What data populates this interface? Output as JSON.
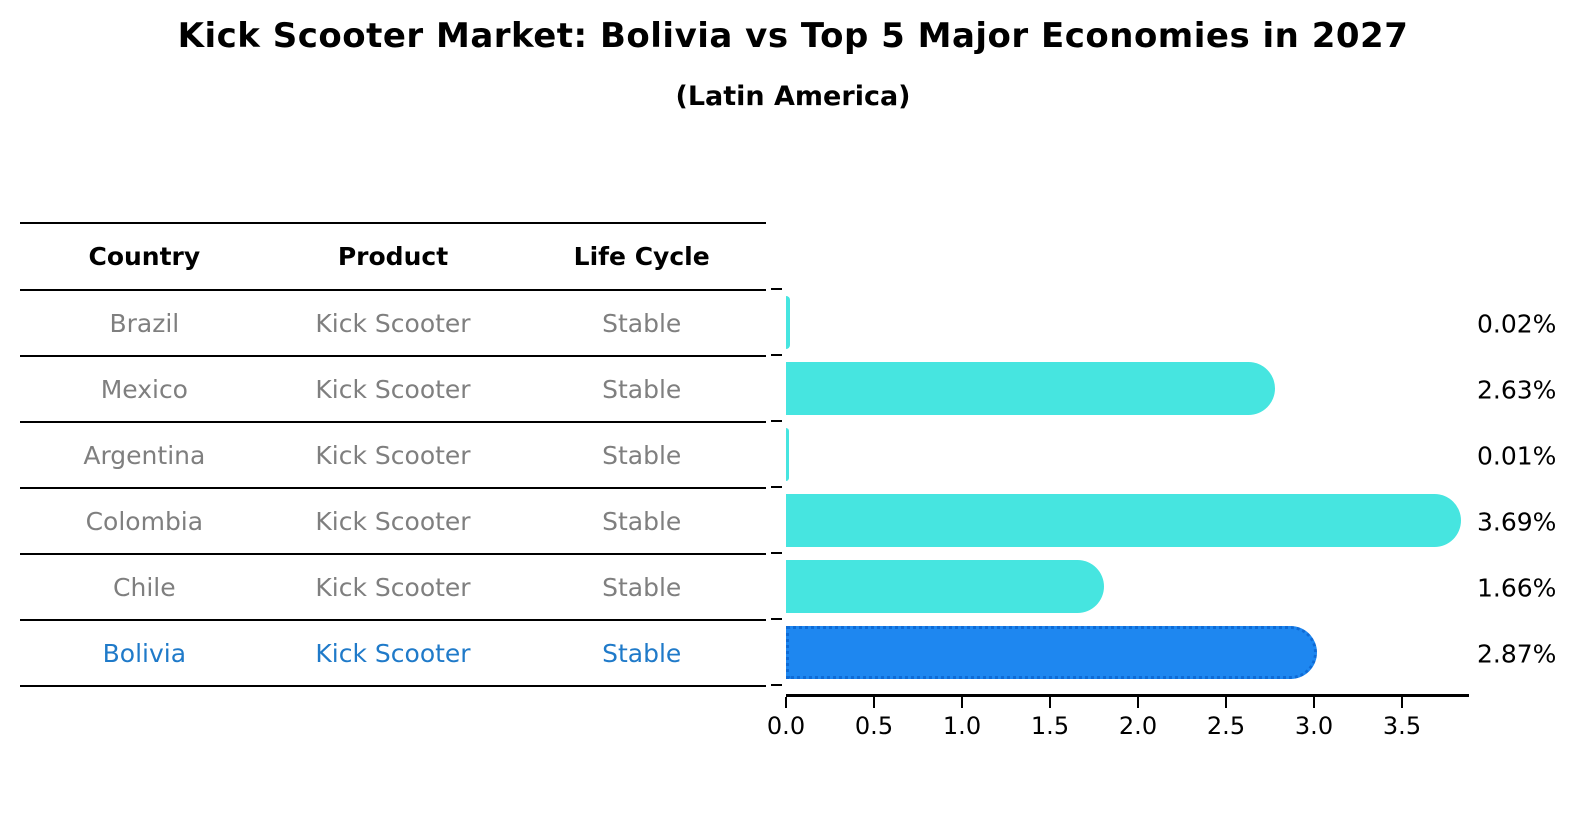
{
  "title": "Kick Scooter Market: Bolivia vs Top 5 Major Economies in 2027",
  "subtitle": "(Latin America)",
  "table": {
    "headers": [
      "Country",
      "Product",
      "Life Cycle"
    ],
    "rows": [
      {
        "country": "Brazil",
        "product": "Kick Scooter",
        "life_cycle": "Stable",
        "highlight": false
      },
      {
        "country": "Mexico",
        "product": "Kick Scooter",
        "life_cycle": "Stable",
        "highlight": false
      },
      {
        "country": "Argentina",
        "product": "Kick Scooter",
        "life_cycle": "Stable",
        "highlight": false
      },
      {
        "country": "Colombia",
        "product": "Kick Scooter",
        "life_cycle": "Stable",
        "highlight": false
      },
      {
        "country": "Chile",
        "product": "Kick Scooter",
        "life_cycle": "Stable",
        "highlight": false
      },
      {
        "country": "Bolivia",
        "product": "Kick Scooter",
        "life_cycle": "Stable",
        "highlight": true
      }
    ]
  },
  "chart_data": {
    "type": "bar",
    "orientation": "horizontal",
    "title": "Kick Scooter Market: Bolivia vs Top 5 Major Economies in 2027",
    "subtitle": "(Latin America)",
    "categories": [
      "Brazil",
      "Mexico",
      "Argentina",
      "Colombia",
      "Chile",
      "Bolivia"
    ],
    "values": [
      0.02,
      2.63,
      0.01,
      3.69,
      1.66,
      2.87
    ],
    "value_labels": [
      "0.02%",
      "2.63%",
      "0.01%",
      "3.69%",
      "1.66%",
      "2.87%"
    ],
    "x_ticks": [
      0.0,
      0.5,
      1.0,
      1.5,
      2.0,
      2.5,
      3.0,
      3.5
    ],
    "x_tick_labels": [
      "0.0",
      "0.5",
      "1.0",
      "1.5",
      "2.0",
      "2.5",
      "3.0",
      "3.5"
    ],
    "xlim": [
      0,
      3.88
    ],
    "grid": false,
    "legend": false,
    "highlight_index": 5,
    "bar_color": "#46e5e0",
    "highlight_bar_color": "#1e87f0",
    "highlight_border_color": "#0e6bd6",
    "highlight_text_color": "#1f7ac9",
    "table_text_color": "#7f7f7f"
  }
}
